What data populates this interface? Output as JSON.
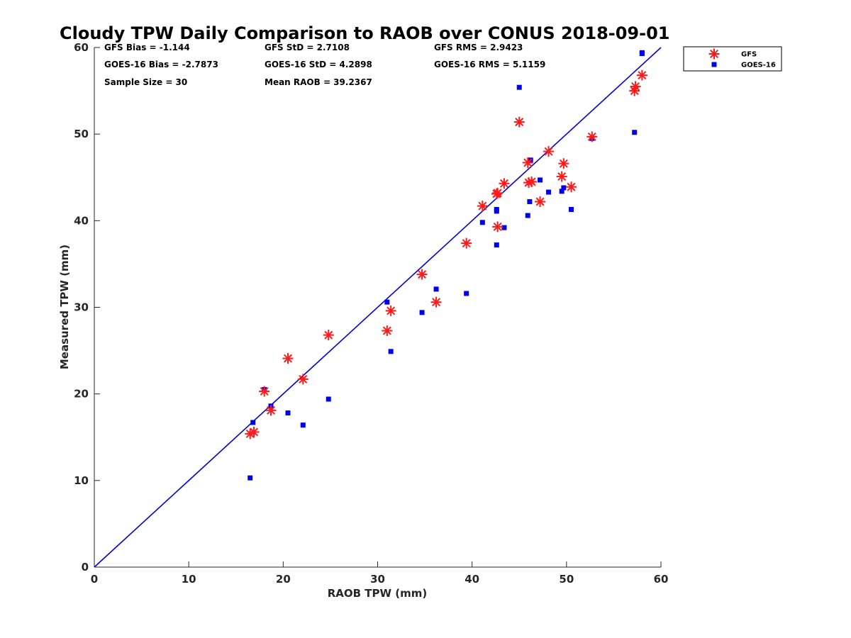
{
  "chart_data": {
    "type": "scatter",
    "title": "Cloudy TPW Daily Comparison to RAOB over CONUS 2018-09-01",
    "xlabel": "RAOB TPW (mm)",
    "ylabel": "Measured TPW (mm)",
    "xlim": [
      0,
      60
    ],
    "ylim": [
      0,
      60
    ],
    "xticks": [
      "0",
      "10",
      "20",
      "30",
      "40",
      "50",
      "60"
    ],
    "yticks": [
      "0",
      "10",
      "20",
      "30",
      "40",
      "50",
      "60"
    ],
    "grid": false,
    "legend_position": "top-right-outside",
    "stats": [
      [
        "GFS Bias = -1.144",
        "GFS StD = 2.7108",
        "GFS RMS = 2.9423"
      ],
      [
        "GOES-16 Bias = -2.7873",
        "GOES-16 StD = 4.2898",
        "GOES-16 RMS = 5.1159"
      ],
      [
        "Sample Size = 30",
        "Mean RAOB = 39.2367",
        ""
      ]
    ],
    "reference_line": {
      "from": [
        0,
        0
      ],
      "to": [
        60,
        60
      ],
      "color": "#0000dd"
    },
    "series": [
      {
        "name": "GFS",
        "marker": "asterisk",
        "color": "#ff1a1a",
        "points": [
          [
            16.5,
            15.4
          ],
          [
            16.9,
            15.6
          ],
          [
            18.0,
            20.3
          ],
          [
            18.7,
            18.1
          ],
          [
            20.5,
            24.1
          ],
          [
            22.1,
            21.7
          ],
          [
            24.8,
            26.8
          ],
          [
            31.0,
            27.3
          ],
          [
            31.4,
            29.6
          ],
          [
            34.7,
            33.8
          ],
          [
            36.2,
            30.6
          ],
          [
            39.4,
            37.4
          ],
          [
            41.1,
            41.7
          ],
          [
            42.6,
            43.1
          ],
          [
            42.7,
            43.2
          ],
          [
            42.7,
            39.3
          ],
          [
            43.4,
            44.3
          ],
          [
            45.0,
            51.4
          ],
          [
            45.9,
            46.7
          ],
          [
            46.0,
            44.4
          ],
          [
            46.3,
            44.5
          ],
          [
            47.2,
            42.2
          ],
          [
            48.1,
            48.0
          ],
          [
            49.5,
            45.1
          ],
          [
            49.7,
            46.6
          ],
          [
            50.5,
            43.9
          ],
          [
            52.7,
            49.7
          ],
          [
            57.2,
            55.0
          ],
          [
            57.3,
            55.5
          ],
          [
            58.0,
            56.8
          ]
        ]
      },
      {
        "name": "GOES-16",
        "marker": "square",
        "color": "#0000ee",
        "points": [
          [
            16.5,
            10.3
          ],
          [
            16.8,
            16.7
          ],
          [
            18.0,
            20.5
          ],
          [
            18.7,
            18.6
          ],
          [
            20.5,
            17.8
          ],
          [
            22.1,
            16.4
          ],
          [
            24.8,
            19.4
          ],
          [
            31.0,
            30.6
          ],
          [
            31.4,
            24.9
          ],
          [
            34.7,
            29.4
          ],
          [
            36.2,
            32.1
          ],
          [
            39.4,
            31.6
          ],
          [
            41.1,
            39.8
          ],
          [
            42.6,
            41.3
          ],
          [
            42.6,
            41.1
          ],
          [
            42.6,
            37.2
          ],
          [
            43.4,
            39.2
          ],
          [
            45.0,
            55.4
          ],
          [
            45.9,
            40.6
          ],
          [
            46.1,
            42.2
          ],
          [
            46.2,
            47.0
          ],
          [
            47.2,
            44.7
          ],
          [
            48.1,
            43.3
          ],
          [
            49.5,
            43.4
          ],
          [
            49.7,
            43.8
          ],
          [
            50.5,
            41.3
          ],
          [
            52.7,
            49.5
          ],
          [
            57.2,
            50.2
          ],
          [
            58.0,
            59.3
          ],
          [
            58.0,
            59.4
          ]
        ]
      }
    ]
  }
}
